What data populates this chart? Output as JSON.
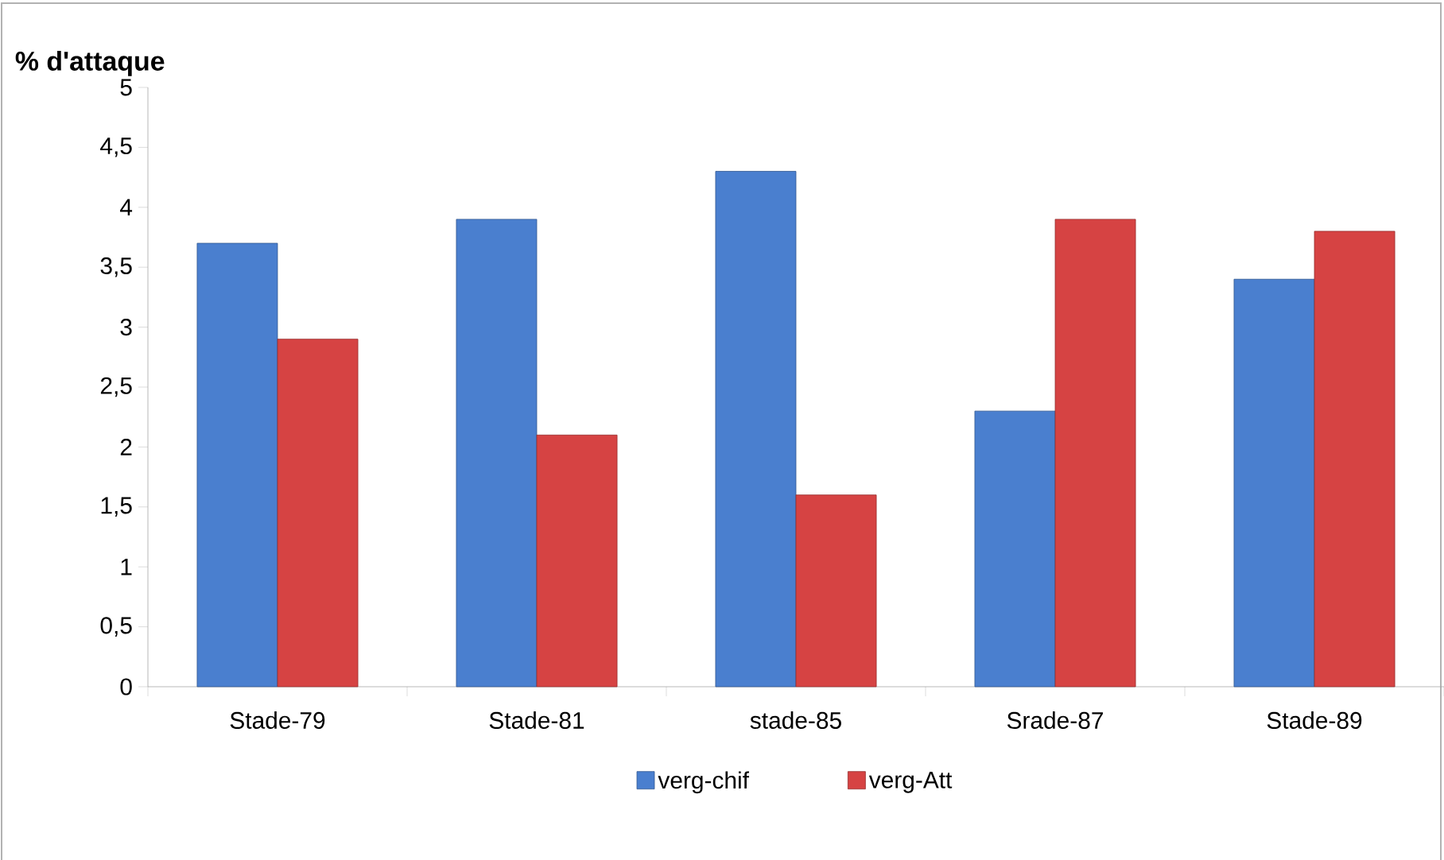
{
  "chart_data": {
    "type": "bar",
    "title": "% d'attaque",
    "categories": [
      "Stade-79",
      "Stade-81",
      "stade-85",
      "Srade-87",
      "Stade-89"
    ],
    "series": [
      {
        "name": "verg-chif",
        "color": "#4a7fcf",
        "values": [
          3.7,
          3.9,
          4.3,
          2.3,
          3.4
        ]
      },
      {
        "name": "verg-Att",
        "color": "#d64343",
        "values": [
          2.9,
          2.1,
          1.6,
          3.9,
          3.8
        ]
      }
    ],
    "ylim": [
      0,
      5
    ],
    "yticks": [
      0,
      {
        "value": 0.5,
        "label": "0,5"
      },
      1,
      {
        "value": 1.5,
        "label": "1,5"
      },
      2,
      {
        "value": 2.5,
        "label": "2,5"
      },
      3,
      {
        "value": 3.5,
        "label": "3,5"
      },
      4,
      {
        "value": 4.5,
        "label": "4,5"
      },
      5
    ],
    "grid": false,
    "legend": "bottom"
  }
}
